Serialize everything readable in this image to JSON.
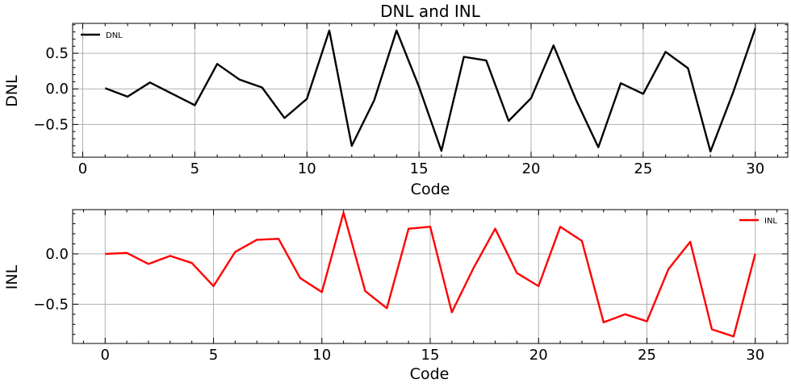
{
  "chart_data": [
    {
      "type": "line",
      "title": "DNL and INL",
      "xlabel": "Code",
      "ylabel": "DNL",
      "xlim": [
        -0.45,
        31.45
      ],
      "ylim": [
        -0.96,
        0.92
      ],
      "xticks": [
        0,
        5,
        10,
        15,
        20,
        25,
        30
      ],
      "xtick_labels": [
        "0",
        "5",
        "10",
        "15",
        "20",
        "25",
        "30"
      ],
      "yticks": [
        -0.5,
        0.0,
        0.5
      ],
      "ytick_labels": [
        "−0.5",
        "0.0",
        "0.5"
      ],
      "grid": true,
      "legend_position": "upper left",
      "series": [
        {
          "name": "DNL",
          "color": "#000000",
          "x": [
            1,
            2,
            3,
            4,
            5,
            6,
            7,
            8,
            9,
            10,
            11,
            12,
            13,
            14,
            15,
            16,
            17,
            18,
            19,
            20,
            21,
            22,
            23,
            24,
            25,
            26,
            27,
            28,
            29,
            30
          ],
          "y": [
            0.01,
            -0.11,
            0.09,
            -0.07,
            -0.23,
            0.35,
            0.13,
            0.02,
            -0.41,
            -0.14,
            0.82,
            -0.8,
            -0.16,
            0.82,
            0.03,
            -0.87,
            0.45,
            0.4,
            -0.45,
            -0.13,
            0.61,
            -0.15,
            -0.82,
            0.08,
            -0.07,
            0.52,
            0.29,
            -0.88,
            -0.06,
            0.85
          ]
        }
      ]
    },
    {
      "type": "line",
      "title": "",
      "xlabel": "Code",
      "ylabel": "INL",
      "xlim": [
        -1.5,
        31.5
      ],
      "ylim": [
        -0.89,
        0.44
      ],
      "xticks": [
        0,
        5,
        10,
        15,
        20,
        25,
        30
      ],
      "xtick_labels": [
        "0",
        "5",
        "10",
        "15",
        "20",
        "25",
        "30"
      ],
      "yticks": [
        -0.5,
        0.0
      ],
      "ytick_labels": [
        "−0.5",
        "0.0"
      ],
      "grid": true,
      "legend_position": "upper right",
      "series": [
        {
          "name": "INL",
          "color": "#ff0000",
          "x": [
            0,
            1,
            2,
            3,
            4,
            5,
            6,
            7,
            8,
            9,
            10,
            11,
            12,
            13,
            14,
            15,
            16,
            17,
            18,
            19,
            20,
            21,
            22,
            23,
            24,
            25,
            26,
            27,
            28,
            29,
            30
          ],
          "y": [
            0.0,
            0.01,
            -0.1,
            -0.02,
            -0.09,
            -0.32,
            0.02,
            0.14,
            0.15,
            -0.24,
            -0.38,
            0.41,
            -0.37,
            -0.54,
            0.25,
            0.27,
            -0.58,
            -0.14,
            0.25,
            -0.19,
            -0.32,
            0.27,
            0.13,
            -0.68,
            -0.6,
            -0.67,
            -0.15,
            0.12,
            -0.75,
            -0.82,
            0.0
          ]
        }
      ]
    }
  ]
}
